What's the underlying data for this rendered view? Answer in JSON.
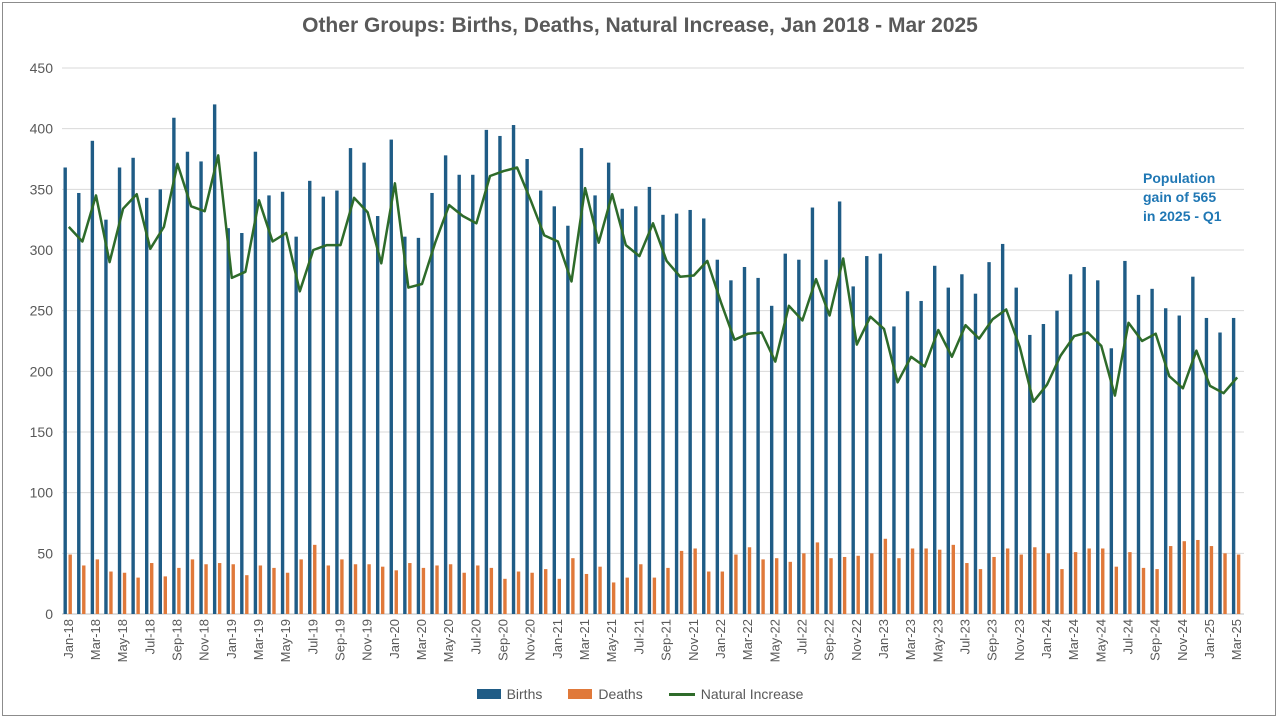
{
  "chart_data": {
    "type": "bar",
    "title": "Other Groups: Births, Deaths, Natural Increase, Jan 2018 - Mar 2025",
    "ylim": [
      0,
      450
    ],
    "yticks": [
      0,
      50,
      100,
      150,
      200,
      250,
      300,
      350,
      400,
      450
    ],
    "grid": true,
    "legend_position": "bottom",
    "categories": [
      "Jan-18",
      "Feb-18",
      "Mar-18",
      "Apr-18",
      "May-18",
      "Jun-18",
      "Jul-18",
      "Aug-18",
      "Sep-18",
      "Oct-18",
      "Nov-18",
      "Dec-18",
      "Jan-19",
      "Feb-19",
      "Mar-19",
      "Apr-19",
      "May-19",
      "Jun-19",
      "Jul-19",
      "Aug-19",
      "Sep-19",
      "Oct-19",
      "Nov-19",
      "Dec-19",
      "Jan-20",
      "Feb-20",
      "Mar-20",
      "Apr-20",
      "May-20",
      "Jun-20",
      "Jul-20",
      "Aug-20",
      "Sep-20",
      "Oct-20",
      "Nov-20",
      "Dec-20",
      "Jan-21",
      "Feb-21",
      "Mar-21",
      "Apr-21",
      "May-21",
      "Jun-21",
      "Jul-21",
      "Aug-21",
      "Sep-21",
      "Oct-21",
      "Nov-21",
      "Dec-21",
      "Jan-22",
      "Feb-22",
      "Mar-22",
      "Apr-22",
      "May-22",
      "Jun-22",
      "Jul-22",
      "Aug-22",
      "Sep-22",
      "Oct-22",
      "Nov-22",
      "Dec-22",
      "Jan-23",
      "Feb-23",
      "Mar-23",
      "Apr-23",
      "May-23",
      "Jun-23",
      "Jul-23",
      "Aug-23",
      "Sep-23",
      "Oct-23",
      "Nov-23",
      "Dec-23",
      "Jan-24",
      "Feb-24",
      "Mar-24",
      "Apr-24",
      "May-24",
      "Jun-24",
      "Jul-24",
      "Aug-24",
      "Sep-24",
      "Oct-24",
      "Nov-24",
      "Dec-24",
      "Jan-25",
      "Feb-25",
      "Mar-25"
    ],
    "tick_labels": [
      "Jan-18",
      "Mar-18",
      "May-18",
      "Jul-18",
      "Sep-18",
      "Nov-18",
      "Jan-19",
      "Mar-19",
      "May-19",
      "Jul-19",
      "Sep-19",
      "Nov-19",
      "Jan-20",
      "Mar-20",
      "May-20",
      "Jul-20",
      "Sep-20",
      "Nov-20",
      "Jan-21",
      "Mar-21",
      "May-21",
      "Jul-21",
      "Sep-21",
      "Nov-21",
      "Jan-22",
      "Mar-22",
      "May-22",
      "Jul-22",
      "Sep-22",
      "Nov-22",
      "Jan-23",
      "Mar-23",
      "May-23",
      "Jul-23",
      "Sep-23",
      "Nov-23",
      "Jan-24",
      "Mar-24",
      "May-24",
      "Jul-24",
      "Sep-24",
      "Nov-24",
      "Jan-25",
      "Mar-25"
    ],
    "series": [
      {
        "name": "Births",
        "type": "bar",
        "color": "#1f5c86",
        "values": [
          368,
          347,
          390,
          325,
          368,
          376,
          343,
          350,
          409,
          381,
          373,
          420,
          318,
          314,
          381,
          345,
          348,
          311,
          357,
          344,
          349,
          384,
          372,
          328,
          391,
          311,
          310,
          347,
          378,
          362,
          362,
          399,
          394,
          403,
          375,
          349,
          336,
          320,
          384,
          345,
          372,
          334,
          336,
          352,
          329,
          330,
          333,
          326,
          292,
          275,
          286,
          277,
          254,
          297,
          292,
          335,
          292,
          340,
          270,
          295,
          297,
          237,
          266,
          258,
          287,
          269,
          280,
          264,
          290,
          305,
          269,
          230,
          239,
          250,
          280,
          286,
          275,
          219,
          291,
          263,
          268,
          252,
          246,
          278,
          244,
          232,
          244
        ]
      },
      {
        "name": "Deaths",
        "type": "bar",
        "color": "#e0793a",
        "values": [
          49,
          40,
          45,
          35,
          34,
          30,
          42,
          31,
          38,
          45,
          41,
          42,
          41,
          32,
          40,
          38,
          34,
          45,
          57,
          40,
          45,
          41,
          41,
          39,
          36,
          42,
          38,
          40,
          41,
          34,
          40,
          38,
          29,
          35,
          34,
          37,
          29,
          46,
          33,
          39,
          26,
          30,
          41,
          30,
          38,
          52,
          54,
          35,
          35,
          49,
          55,
          45,
          46,
          43,
          50,
          59,
          46,
          47,
          48,
          50,
          62,
          46,
          54,
          54,
          53,
          57,
          42,
          37,
          47,
          54,
          49,
          55,
          50,
          37,
          51,
          54,
          54,
          39,
          51,
          38,
          37,
          56,
          60,
          61,
          56,
          50,
          49
        ]
      },
      {
        "name": "Natural Increase",
        "type": "line",
        "color": "#2e6b2a",
        "values": [
          319,
          307,
          345,
          290,
          334,
          346,
          301,
          319,
          371,
          336,
          332,
          378,
          277,
          282,
          341,
          307,
          314,
          266,
          300,
          304,
          304,
          343,
          331,
          289,
          355,
          269,
          272,
          307,
          337,
          328,
          322,
          361,
          365,
          368,
          341,
          312,
          307,
          274,
          351,
          306,
          346,
          304,
          295,
          322,
          291,
          278,
          279,
          291,
          257,
          226,
          231,
          232,
          208,
          254,
          242,
          276,
          246,
          293,
          222,
          245,
          235,
          191,
          212,
          204,
          234,
          212,
          238,
          227,
          243,
          251,
          220,
          175,
          189,
          213,
          229,
          232,
          221,
          180,
          240,
          225,
          231,
          196,
          186,
          217,
          188,
          182,
          195
        ]
      }
    ],
    "annotation": {
      "text": "Population gain of 565 in 2025 - Q1",
      "lines": [
        "Population",
        "gain of 565",
        "in 2025 - Q1"
      ],
      "color": "#1f77b4"
    }
  }
}
